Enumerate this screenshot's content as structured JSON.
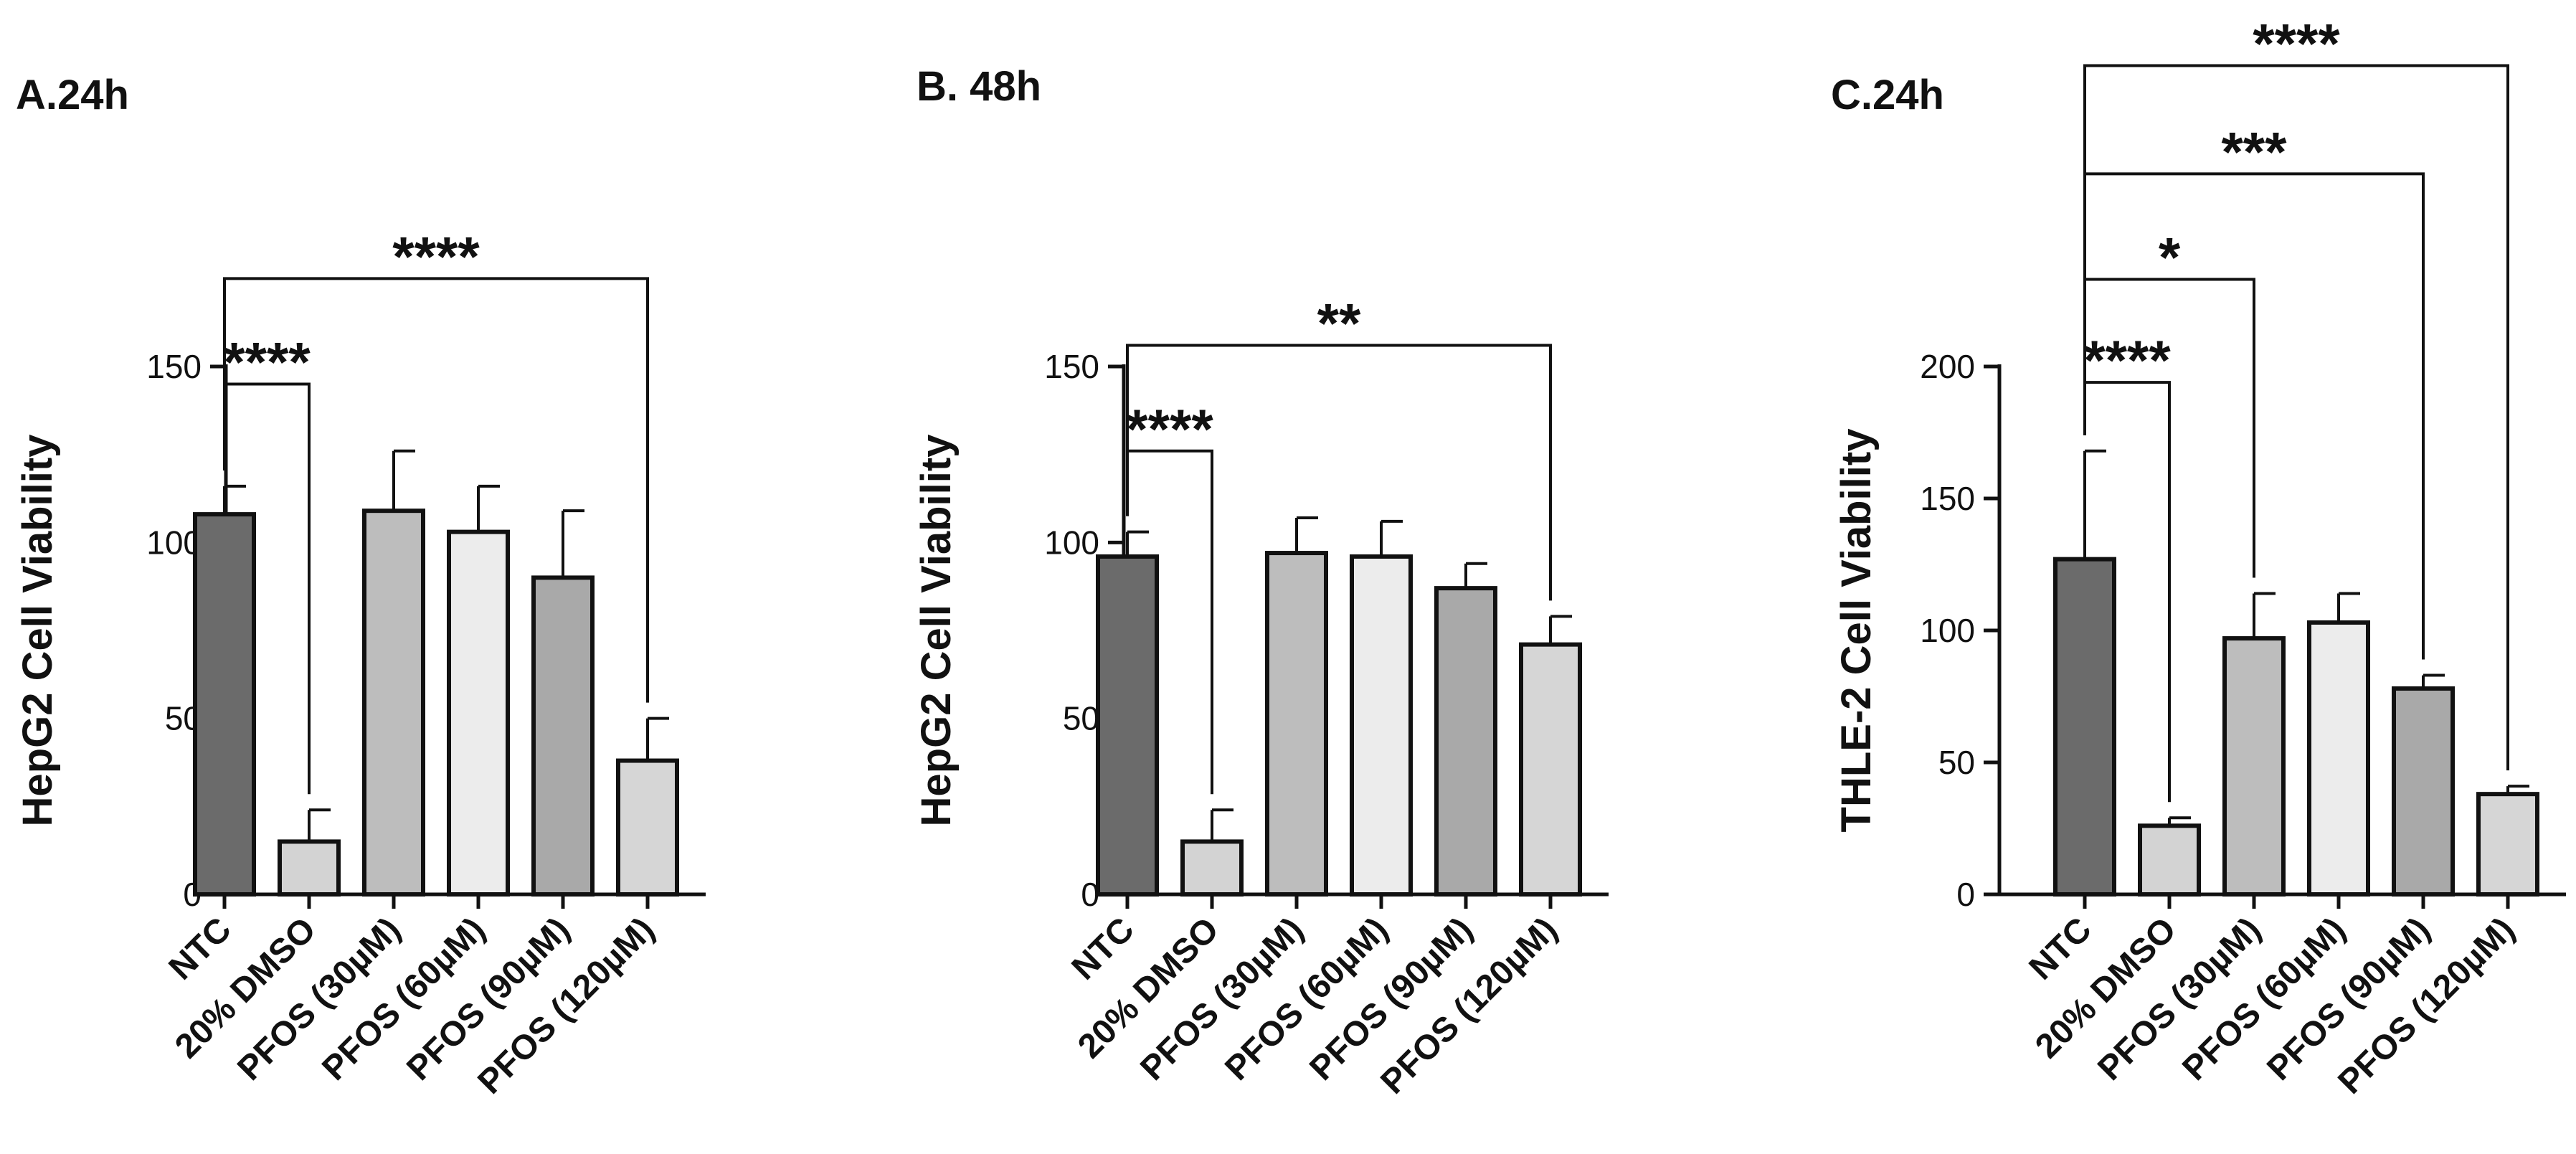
{
  "chart_data": [
    {
      "type": "bar",
      "panel_label": "A.24h",
      "ylabel": "HepG2 Cell Viability",
      "ylim": [
        0,
        150
      ],
      "yticks": [
        0,
        50,
        100,
        150
      ],
      "categories": [
        "NTC",
        "20% DMSO",
        "PFOS (30µM)",
        "PFOS (60µM)",
        "PFOS (90µM)",
        "PFOS (120µM)"
      ],
      "values": [
        108,
        15,
        109,
        103,
        90,
        38
      ],
      "errors": [
        8,
        9,
        17,
        13,
        19,
        12
      ],
      "bar_colors": [
        "#6b6b6b",
        "#d3d3d3",
        "#bdbdbd",
        "#ececec",
        "#a9a9a9",
        "#d6d6d6"
      ],
      "significance": [
        {
          "from": 0,
          "to": 1,
          "label": "****",
          "y": 145
        },
        {
          "from": 0,
          "to": 5,
          "label": "****",
          "y": 175
        }
      ]
    },
    {
      "type": "bar",
      "panel_label": "B. 48h",
      "ylabel": "HepG2 Cell Viability",
      "ylim": [
        0,
        150
      ],
      "yticks": [
        0,
        50,
        100,
        150
      ],
      "categories": [
        "NTC",
        "20% DMSO",
        "PFOS (30µM)",
        "PFOS (60µM)",
        "PFOS (90µM)",
        "PFOS (120µM)"
      ],
      "values": [
        96,
        15,
        97,
        96,
        87,
        71
      ],
      "errors": [
        7,
        9,
        10,
        10,
        7,
        8
      ],
      "bar_colors": [
        "#6b6b6b",
        "#d3d3d3",
        "#bdbdbd",
        "#ececec",
        "#a9a9a9",
        "#d6d6d6"
      ],
      "significance": [
        {
          "from": 0,
          "to": 1,
          "label": "****",
          "y": 126
        },
        {
          "from": 0,
          "to": 5,
          "label": "**",
          "y": 156
        }
      ]
    },
    {
      "type": "bar",
      "panel_label": "C.24h",
      "ylabel": "THLE-2 Cell Viability",
      "ylim": [
        0,
        200
      ],
      "yticks": [
        0,
        50,
        100,
        150,
        200
      ],
      "categories": [
        "NTC",
        "20% DMSO",
        "PFOS (30µM)",
        "PFOS (60µM)",
        "PFOS (90µM)",
        "PFOS (120µM)"
      ],
      "values": [
        127,
        26,
        97,
        103,
        78,
        38
      ],
      "errors": [
        41,
        3,
        17,
        11,
        5,
        3
      ],
      "bar_colors": [
        "#6b6b6b",
        "#d3d3d3",
        "#bdbdbd",
        "#ececec",
        "#a9a9a9",
        "#d6d6d6"
      ],
      "significance": [
        {
          "from": 0,
          "to": 1,
          "label": "****",
          "y": 194
        },
        {
          "from": 0,
          "to": 2,
          "label": "*",
          "y": 233
        },
        {
          "from": 0,
          "to": 4,
          "label": "***",
          "y": 273
        },
        {
          "from": 0,
          "to": 5,
          "label": "****",
          "y": 314
        }
      ]
    }
  ]
}
